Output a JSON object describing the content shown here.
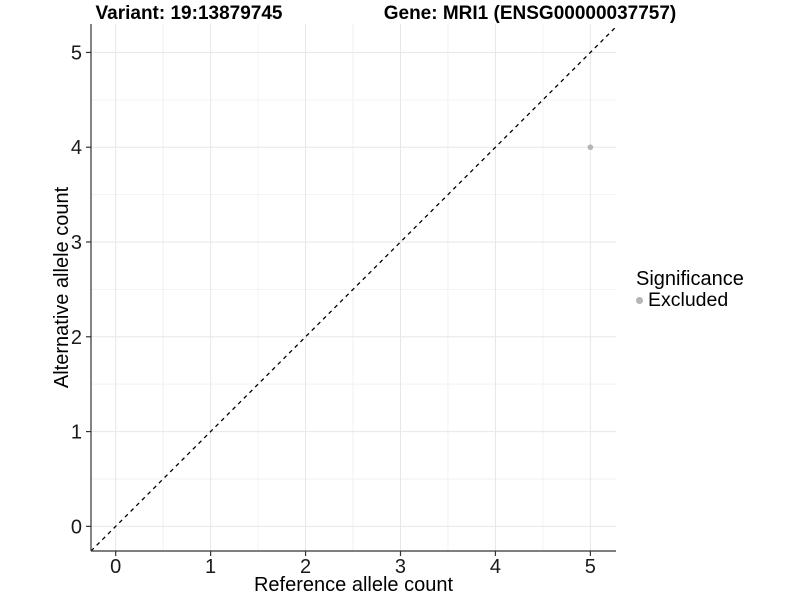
{
  "titles": {
    "variant": "Variant: 19:13879745",
    "gene": "Gene: MRI1 (ENSG00000037757)"
  },
  "chart_data": {
    "type": "scatter",
    "xlabel": "Reference allele count",
    "ylabel": "Alternative allele count",
    "xticks": [
      0,
      1,
      2,
      3,
      4,
      5
    ],
    "yticks": [
      0,
      1,
      2,
      3,
      4,
      5
    ],
    "xlim": [
      -0.26,
      5.27
    ],
    "ylim": [
      -0.26,
      5.3
    ],
    "minor_grid_step": 0.5,
    "grid": "major+minor",
    "series": [
      {
        "name": "Excluded",
        "color": "#b5b5b5",
        "points": [
          {
            "x": 5,
            "y": 4
          }
        ]
      }
    ],
    "reference_line": {
      "type": "identity",
      "slope": 1,
      "intercept": 0,
      "style": "dashed",
      "color": "#000000"
    },
    "legend": {
      "title": "Significance",
      "position": "right",
      "items": [
        {
          "label": "Excluded",
          "color": "#b5b5b5"
        }
      ]
    }
  },
  "colors": {
    "background": "#ffffff",
    "grid_major": "#e7e7e7",
    "grid_minor": "#f2f2f2",
    "axis_line": "#333333",
    "tick_text": "#1a1a1a",
    "title_text": "#000000"
  }
}
